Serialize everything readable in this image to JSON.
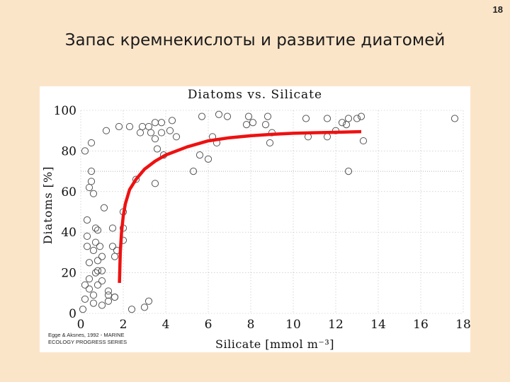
{
  "slide": {
    "number": "18",
    "title": "Запас кремнекислоты и развитие диатомей"
  },
  "source_caption": {
    "line1": "Egge & Aksnes, 1992 - MARINE",
    "line2": "ECOLOGY PROGRESS SERIES"
  },
  "chart_data": {
    "type": "scatter",
    "title": "Diatoms vs. Silicate",
    "xlabel": "Silicate [mmol m⁻³]",
    "ylabel": "Diatoms [%]",
    "xlim": [
      0,
      18
    ],
    "ylim": [
      0,
      100
    ],
    "xticks": [
      0,
      2,
      4,
      6,
      8,
      10,
      12,
      14,
      16,
      18
    ],
    "yticks": [
      0,
      20,
      40,
      60,
      80,
      100
    ],
    "grid": true,
    "series": [
      {
        "kind": "scatter",
        "marker": "open-circle",
        "color": "#555555",
        "points": [
          [
            0.1,
            2
          ],
          [
            0.2,
            7
          ],
          [
            0.2,
            14
          ],
          [
            0.2,
            80
          ],
          [
            0.3,
            46
          ],
          [
            0.3,
            38
          ],
          [
            0.3,
            33
          ],
          [
            0.4,
            25
          ],
          [
            0.4,
            17
          ],
          [
            0.4,
            12
          ],
          [
            0.4,
            62
          ],
          [
            0.5,
            70
          ],
          [
            0.5,
            65
          ],
          [
            0.5,
            84
          ],
          [
            0.6,
            5
          ],
          [
            0.6,
            9
          ],
          [
            0.6,
            31
          ],
          [
            0.6,
            59
          ],
          [
            0.7,
            42
          ],
          [
            0.7,
            35
          ],
          [
            0.7,
            20
          ],
          [
            0.8,
            14
          ],
          [
            0.8,
            21
          ],
          [
            0.8,
            26
          ],
          [
            0.8,
            41
          ],
          [
            0.9,
            33
          ],
          [
            1.0,
            4
          ],
          [
            1.0,
            16
          ],
          [
            1.0,
            28
          ],
          [
            1.0,
            21
          ],
          [
            1.1,
            52
          ],
          [
            1.2,
            90
          ],
          [
            1.3,
            6
          ],
          [
            1.3,
            11
          ],
          [
            1.3,
            9
          ],
          [
            1.5,
            42
          ],
          [
            1.5,
            33
          ],
          [
            1.6,
            8
          ],
          [
            1.6,
            8
          ],
          [
            1.6,
            28
          ],
          [
            1.7,
            31
          ],
          [
            1.8,
            92
          ],
          [
            2.0,
            50
          ],
          [
            2.0,
            36
          ],
          [
            2.0,
            42
          ],
          [
            2.3,
            92
          ],
          [
            2.4,
            2
          ],
          [
            2.6,
            66
          ],
          [
            2.8,
            89
          ],
          [
            2.9,
            92
          ],
          [
            3.0,
            3
          ],
          [
            3.2,
            6
          ],
          [
            3.2,
            92
          ],
          [
            3.3,
            89
          ],
          [
            3.5,
            94
          ],
          [
            3.5,
            86
          ],
          [
            3.5,
            64
          ],
          [
            3.6,
            81
          ],
          [
            3.8,
            94
          ],
          [
            3.8,
            89
          ],
          [
            3.9,
            78
          ],
          [
            4.2,
            90
          ],
          [
            4.3,
            95
          ],
          [
            4.5,
            87
          ],
          [
            5.3,
            70
          ],
          [
            5.6,
            78
          ],
          [
            5.7,
            97
          ],
          [
            6.0,
            76
          ],
          [
            6.2,
            87
          ],
          [
            6.4,
            84
          ],
          [
            6.5,
            98
          ],
          [
            6.9,
            97
          ],
          [
            7.8,
            93
          ],
          [
            7.9,
            97
          ],
          [
            8.1,
            94
          ],
          [
            8.7,
            93
          ],
          [
            8.8,
            97
          ],
          [
            8.9,
            84
          ],
          [
            9.0,
            89
          ],
          [
            10.6,
            96
          ],
          [
            10.7,
            87
          ],
          [
            11.6,
            87
          ],
          [
            11.6,
            96
          ],
          [
            12.0,
            90
          ],
          [
            12.3,
            94
          ],
          [
            12.5,
            93
          ],
          [
            12.6,
            70
          ],
          [
            12.6,
            96
          ],
          [
            13.0,
            96
          ],
          [
            13.2,
            97
          ],
          [
            13.3,
            85
          ],
          [
            17.6,
            96
          ]
        ]
      },
      {
        "kind": "line",
        "color": "#ee1111",
        "points": [
          [
            1.82,
            15
          ],
          [
            1.86,
            30
          ],
          [
            1.92,
            40
          ],
          [
            2.0,
            48
          ],
          [
            2.1,
            54
          ],
          [
            2.3,
            61
          ],
          [
            2.6,
            66
          ],
          [
            3.0,
            71
          ],
          [
            3.5,
            75
          ],
          [
            4.0,
            78
          ],
          [
            5.0,
            82
          ],
          [
            6.0,
            85
          ],
          [
            7.0,
            86.5
          ],
          [
            8.0,
            87.5
          ],
          [
            9.0,
            88.2
          ],
          [
            10.0,
            88.7
          ],
          [
            11.0,
            89
          ],
          [
            12.0,
            89.2
          ],
          [
            13.2,
            89.5
          ]
        ]
      }
    ],
    "reference_lines": [
      {
        "axis": "y",
        "value": 70,
        "style": "dotted"
      }
    ]
  }
}
